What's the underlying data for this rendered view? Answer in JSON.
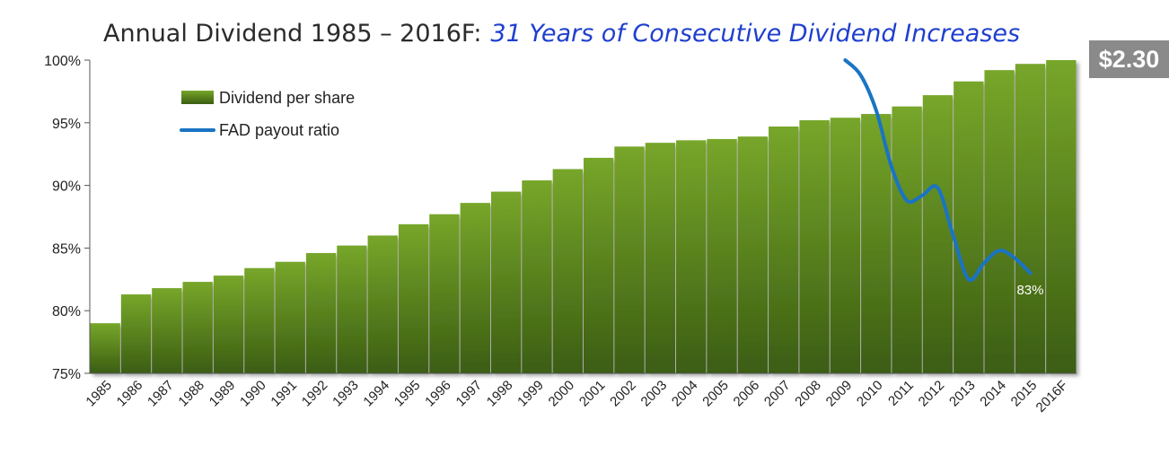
{
  "title": {
    "main": "Annual Dividend 1985 – 2016F:",
    "subtitle": "31 Years of Consecutive Dividend Increases"
  },
  "callout": "$2.30",
  "colors": {
    "bar_top": "#77a62a",
    "bar_bottom": "#3b5d12",
    "line": "#1a74c4",
    "callout_bg": "#8a8a8a",
    "subtitle": "#1f3fcf"
  },
  "chart_data": {
    "type": "bar",
    "categories": [
      "1985",
      "1986",
      "1987",
      "1988",
      "1989",
      "1990",
      "1991",
      "1992",
      "1993",
      "1994",
      "1995",
      "1996",
      "1997",
      "1998",
      "1999",
      "2000",
      "2001",
      "2002",
      "2003",
      "2004",
      "2005",
      "2006",
      "2007",
      "2008",
      "2009",
      "2010",
      "2011",
      "2012",
      "2013",
      "2014",
      "2015",
      "2016F"
    ],
    "ylim": [
      75,
      100
    ],
    "yticks": [
      "75%",
      "80%",
      "85%",
      "90%",
      "95%",
      "100%"
    ],
    "ytick_values": [
      75,
      80,
      85,
      90,
      95,
      100
    ],
    "grid": false,
    "legend": "top-left",
    "series": [
      {
        "name": "Dividend per share",
        "type": "bar",
        "values": [
          79.0,
          81.3,
          81.8,
          82.3,
          82.8,
          83.4,
          83.9,
          84.6,
          85.2,
          86.0,
          86.9,
          87.7,
          88.6,
          89.5,
          90.4,
          91.3,
          92.2,
          93.1,
          93.4,
          93.6,
          93.7,
          93.9,
          94.7,
          95.2,
          95.4,
          95.7,
          96.3,
          97.2,
          98.3,
          99.2,
          99.7,
          100.0
        ]
      },
      {
        "name": "FAD payout ratio",
        "type": "line",
        "x": [
          2009.0,
          2009.5,
          2010.0,
          2010.5,
          2011.0,
          2011.5,
          2012.0,
          2012.5,
          2013.0,
          2013.5,
          2014.0,
          2014.5,
          2015.0
        ],
        "values": [
          100.0,
          98.8,
          96.0,
          91.5,
          88.8,
          89.2,
          89.8,
          86.0,
          82.5,
          83.8,
          84.8,
          84.2,
          83.0
        ]
      }
    ],
    "annotations": [
      {
        "label": "83%",
        "x": 2015,
        "y": 81.3
      }
    ]
  }
}
